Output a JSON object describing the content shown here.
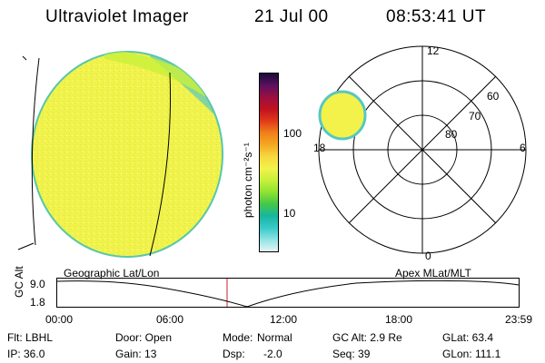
{
  "header": {
    "instrument": "Ultraviolet Imager",
    "date": "21 Jul 00",
    "time": "08:53:41 UT"
  },
  "colorbar": {
    "unit_label": "photon cm⁻²s⁻¹",
    "ticks": [
      "100",
      "10"
    ],
    "colors": [
      "#e6f4f6",
      "#8fe3e3",
      "#38c9c9",
      "#18b5a0",
      "#45c847",
      "#8fe233",
      "#c8f03a",
      "#f2f24b",
      "#f6d83e",
      "#f5a823",
      "#f07f1a",
      "#e03a1a",
      "#c1121f",
      "#9b1040",
      "#5b1060",
      "#1a0a3a"
    ]
  },
  "polar_plot": {
    "labels_mlt": [
      "12",
      "18",
      "6",
      "0"
    ],
    "labels_mlat": [
      "60",
      "70",
      "80"
    ]
  },
  "timeline": {
    "ylabel": "GC Alt",
    "y_ticks": [
      "9.0",
      "1.8"
    ],
    "left_label": "Geographic Lat/Lon",
    "right_label": "Apex MLat/MLT",
    "x_ticks": [
      "00:00",
      "06:00",
      "12:00",
      "18:00",
      "23:59"
    ],
    "marker_color": "#cc2222"
  },
  "info": {
    "filter": "Flt: LBHL",
    "ip": "IP: 36.0",
    "door": "Door: Open",
    "gain": "Gain: 13",
    "mode_label": "Mode:",
    "mode_value": "Normal",
    "dsp_label": "Dsp:",
    "dsp_value": "-2.0",
    "gc_alt": "GC Alt: 2.9 Re",
    "seq": "Seq: 39",
    "glat": "GLat: 63.4",
    "glon": "GLon: 111.1"
  }
}
